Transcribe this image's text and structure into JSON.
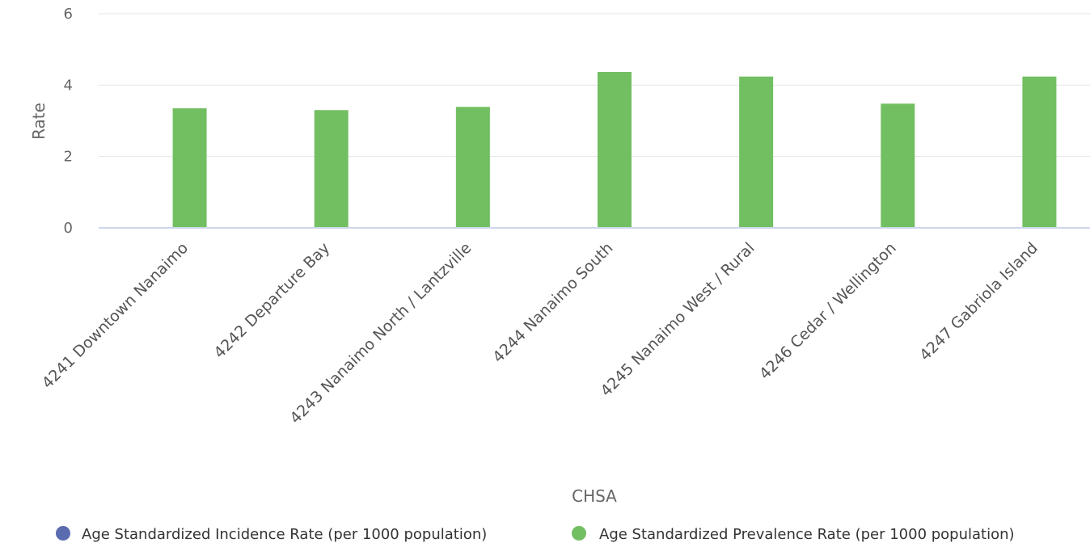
{
  "chart_data": {
    "type": "bar",
    "title": "",
    "xlabel": "CHSA",
    "ylabel": "Rate",
    "ylim": [
      0,
      6
    ],
    "yticks": [
      0,
      2,
      4,
      6
    ],
    "grid": true,
    "legend_position": "bottom",
    "categories": [
      "4241 Downtown Nanaimo",
      "4242 Departure Bay",
      "4243 Nanaimo North / Lantzville",
      "4244 Nanaimo South",
      "4245 Nanaimo West / Rural",
      "4246 Cedar / Wellington",
      "4247 Gabriola Island"
    ],
    "series": [
      {
        "name": "Age Standardized Incidence Rate (per 1000 population)",
        "color": "#5b6bb0",
        "values": [
          null,
          null,
          null,
          null,
          null,
          null,
          null
        ]
      },
      {
        "name": "Age Standardized Prevalence Rate (per 1000 population)",
        "color": "#72bf62",
        "values": [
          3.35,
          3.3,
          3.39,
          4.37,
          4.24,
          3.48,
          4.24
        ]
      }
    ]
  }
}
